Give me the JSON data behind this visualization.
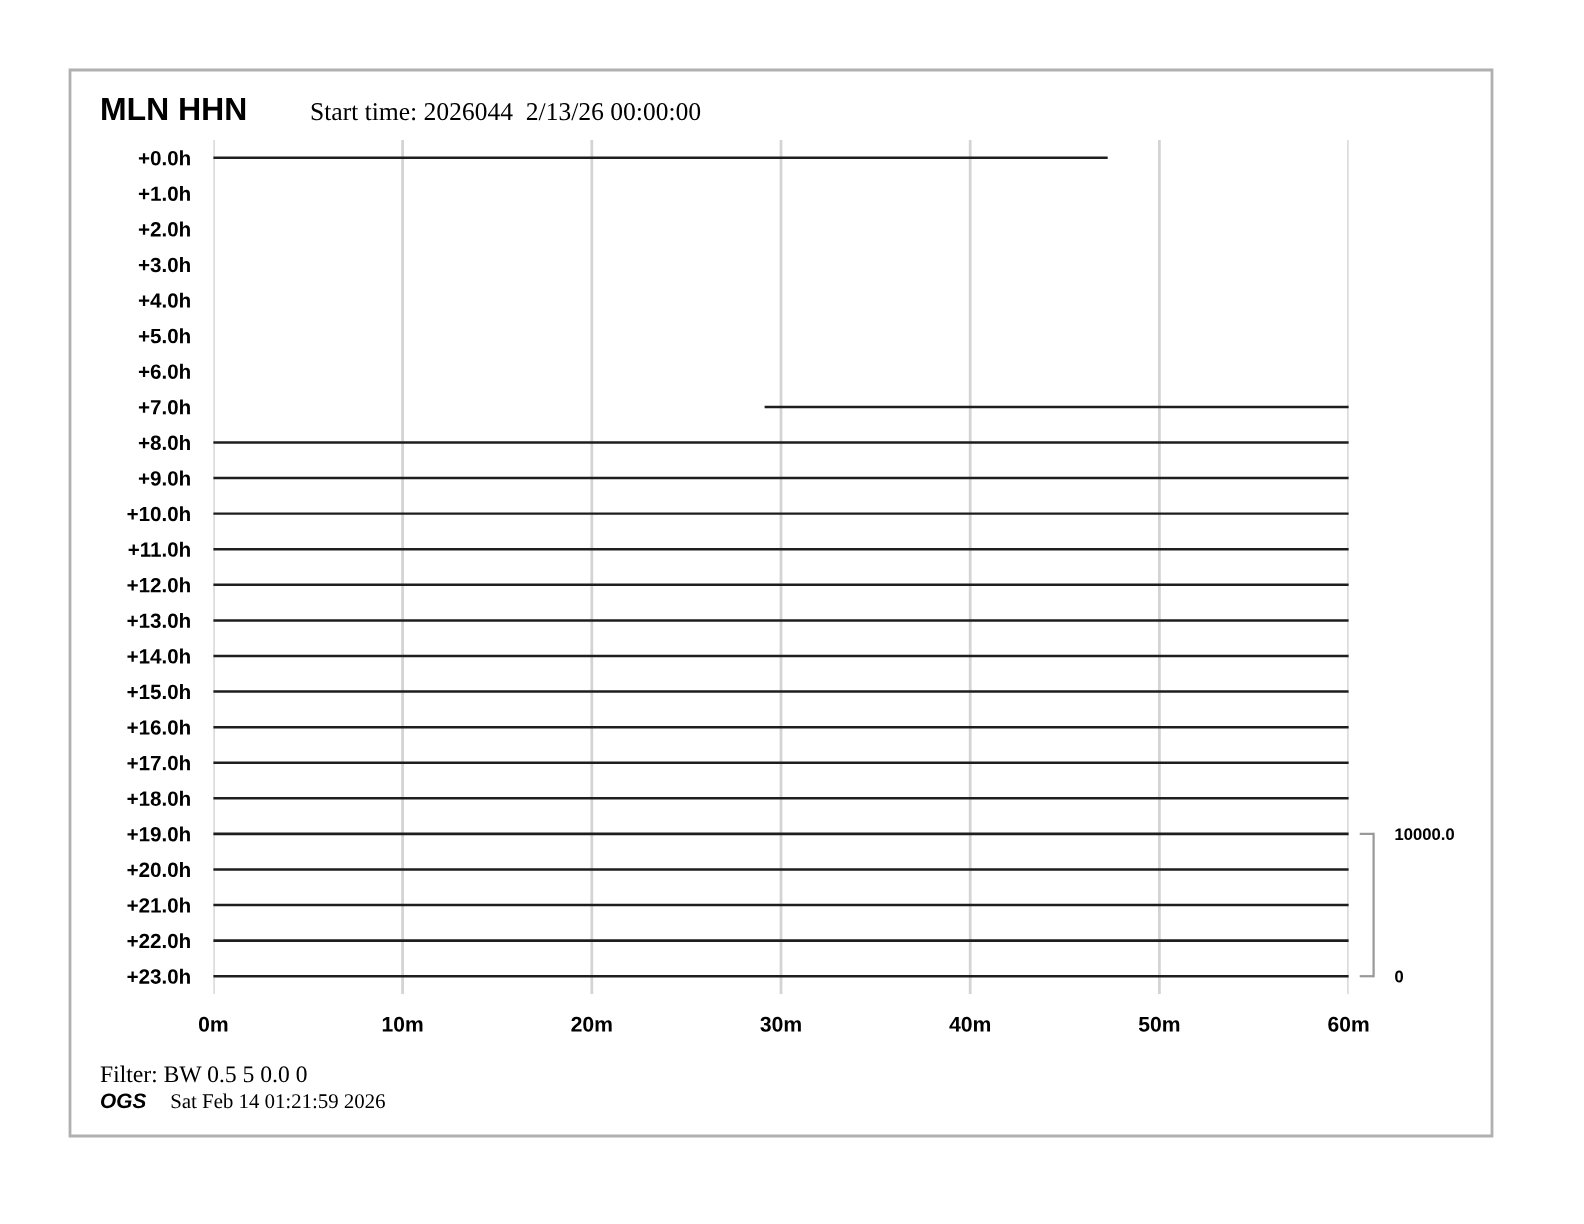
{
  "chart_data": {
    "type": "line",
    "title": "MLN HHN",
    "subtitle": "Start time: 2026044  2/13/26 00:00:00",
    "annotations": [
      "Filter: BW 0.5 5 0.0 0",
      "OGS",
      "Sat Feb 14 01:21:59 2026"
    ],
    "xlim": [
      0,
      60
    ],
    "xticks": [
      {
        "value": 0,
        "label": "0m"
      },
      {
        "value": 10,
        "label": "10m"
      },
      {
        "value": 20,
        "label": "20m"
      },
      {
        "value": 30,
        "label": "30m"
      },
      {
        "value": 40,
        "label": "40m"
      },
      {
        "value": 50,
        "label": "50m"
      },
      {
        "value": 60,
        "label": "60m"
      }
    ],
    "ylim": [
      23.5,
      -0.5
    ],
    "yticks": [
      {
        "value": 0,
        "label": "+0.0h"
      },
      {
        "value": 1,
        "label": "+1.0h"
      },
      {
        "value": 2,
        "label": "+2.0h"
      },
      {
        "value": 3,
        "label": "+3.0h"
      },
      {
        "value": 4,
        "label": "+4.0h"
      },
      {
        "value": 5,
        "label": "+5.0h"
      },
      {
        "value": 6,
        "label": "+6.0h"
      },
      {
        "value": 7,
        "label": "+7.0h"
      },
      {
        "value": 8,
        "label": "+8.0h"
      },
      {
        "value": 9,
        "label": "+9.0h"
      },
      {
        "value": 10,
        "label": "+10.0h"
      },
      {
        "value": 11,
        "label": "+11.0h"
      },
      {
        "value": 12,
        "label": "+12.0h"
      },
      {
        "value": 13,
        "label": "+13.0h"
      },
      {
        "value": 14,
        "label": "+14.0h"
      },
      {
        "value": 15,
        "label": "+15.0h"
      },
      {
        "value": 16,
        "label": "+16.0h"
      },
      {
        "value": 17,
        "label": "+17.0h"
      },
      {
        "value": 18,
        "label": "+18.0h"
      },
      {
        "value": 19,
        "label": "+19.0h"
      },
      {
        "value": 20,
        "label": "+20.0h"
      },
      {
        "value": 21,
        "label": "+21.0h"
      },
      {
        "value": 22,
        "label": "+22.0h"
      },
      {
        "value": 23,
        "label": "+23.0h"
      }
    ],
    "y2lim": [
      -1250,
      58750
    ],
    "y2ticks": [
      0,
      {
        "value": 10000,
        "label": "10000.0"
      }
    ],
    "grid": "x",
    "line_style": "solid",
    "series": [
      {
        "color": "#1e1e1e",
        "x": [
          0,
          47.2
        ],
        "values": [
          0,
          0
        ]
      },
      {
        "color": "#1e1e1e",
        "x": [
          29.2,
          60
        ],
        "values": [
          7,
          7
        ]
      },
      {
        "color": "#1e1e1e",
        "x": [
          0,
          60
        ],
        "values": [
          8,
          8
        ]
      },
      {
        "color": "#1e1e1e",
        "x": [
          0,
          60
        ],
        "values": [
          9,
          9
        ]
      },
      {
        "color": "#1e1e1e",
        "x": [
          0,
          60
        ],
        "values": [
          10,
          10
        ]
      },
      {
        "color": "#1e1e1e",
        "x": [
          0,
          60
        ],
        "values": [
          11,
          11
        ]
      },
      {
        "color": "#1e1e1e",
        "x": [
          0,
          60
        ],
        "values": [
          12,
          12
        ]
      },
      {
        "color": "#1e1e1e",
        "x": [
          0,
          60
        ],
        "values": [
          13,
          13
        ]
      },
      {
        "color": "#1e1e1e",
        "x": [
          0,
          60
        ],
        "values": [
          14,
          14
        ]
      },
      {
        "color": "#1e1e1e",
        "x": [
          0,
          60
        ],
        "values": [
          15,
          15
        ]
      },
      {
        "color": "#1e1e1e",
        "x": [
          0,
          60
        ],
        "values": [
          16,
          16
        ]
      },
      {
        "color": "#1e1e1e",
        "x": [
          0,
          60
        ],
        "values": [
          17,
          17
        ]
      },
      {
        "color": "#1e1e1e",
        "x": [
          0,
          60
        ],
        "values": [
          18,
          18
        ]
      },
      {
        "color": "#1e1e1e",
        "x": [
          0,
          60
        ],
        "values": [
          19,
          19
        ]
      },
      {
        "color": "#1e1e1e",
        "x": [
          0,
          60
        ],
        "values": [
          20,
          20
        ]
      },
      {
        "color": "#1e1e1e",
        "x": [
          0,
          60
        ],
        "values": [
          21,
          21
        ]
      },
      {
        "color": "#1e1e1e",
        "x": [
          0,
          60
        ],
        "values": [
          22,
          22
        ]
      },
      {
        "color": "#1e1e1e",
        "x": [
          0,
          60
        ],
        "values": [
          23,
          23
        ]
      }
    ]
  }
}
